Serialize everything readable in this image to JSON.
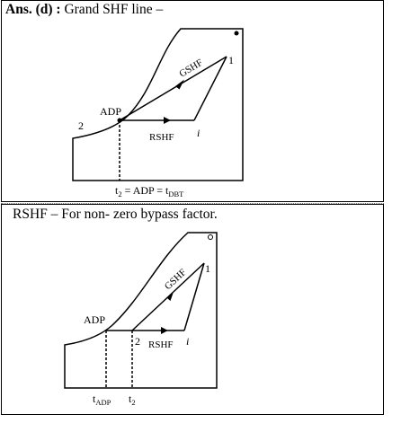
{
  "panel1": {
    "heading_bold": "Ans. (d) :",
    "heading_text": "Grand SHF line –",
    "labels": {
      "point2": "2",
      "adp": "ADP",
      "gshf": "GSHF",
      "point1": "1",
      "rshf": "RSHF",
      "point_i": "i",
      "formula_t": "t",
      "formula_sub2": "2",
      "formula_mid": " = ADP = t",
      "formula_subdbt": "DBT"
    }
  },
  "panel2": {
    "heading_text": "RSHF – For non- zero bypass factor.",
    "labels": {
      "adp": "ADP",
      "gshf": "GSHF",
      "point1": "1",
      "point2": "2",
      "rshf": "RSHF",
      "point_i": "i",
      "tadp_t": "t",
      "tadp_sub": "ADP",
      "t2_t": "t",
      "t2_sub": "2"
    }
  }
}
